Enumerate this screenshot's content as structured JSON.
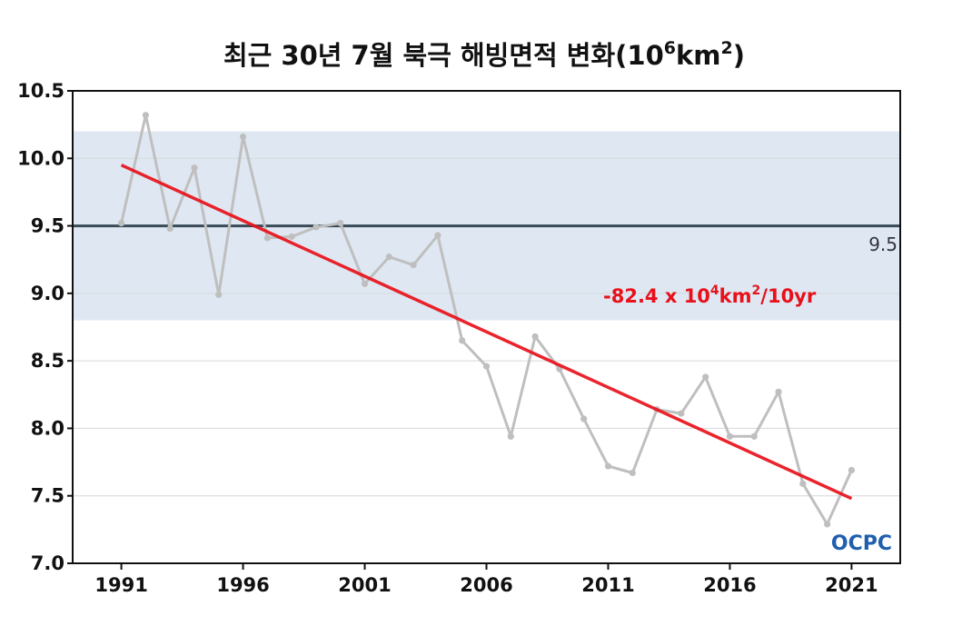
{
  "chart_data": {
    "type": "line",
    "title": "최근 30년 7월 북극 해빙면적 변화(10⁶km²)",
    "title_main": "최근 30년 7월 북극 해빙면적 변화(10",
    "title_exp": "6",
    "title_unit": "km",
    "title_exp2": "2",
    "title_close": ")",
    "xlabel": "",
    "ylabel": "",
    "xlim": [
      1989,
      2023
    ],
    "ylim": [
      7.0,
      10.5
    ],
    "yticks": [
      "7.0",
      "7.5",
      "8.0",
      "8.5",
      "9.0",
      "9.5",
      "10.0",
      "10.5"
    ],
    "xticks": [
      "1991",
      "1996",
      "2001",
      "2006",
      "2011",
      "2016",
      "2021"
    ],
    "series": [
      {
        "color": "#bfbfbf",
        "x": [
          1991,
          1992,
          1993,
          1994,
          1995,
          1996,
          1997,
          1998,
          1999,
          2000,
          2001,
          2002,
          2003,
          2004,
          2005,
          2006,
          2007,
          2008,
          2009,
          2010,
          2011,
          2012,
          2013,
          2014,
          2015,
          2016,
          2017,
          2018,
          2019,
          2020,
          2021
        ],
        "values": [
          9.52,
          10.32,
          9.48,
          9.93,
          8.99,
          10.16,
          9.41,
          9.42,
          9.49,
          9.52,
          9.07,
          9.27,
          9.21,
          9.43,
          8.65,
          8.46,
          7.94,
          8.68,
          8.44,
          8.07,
          7.72,
          7.67,
          8.14,
          8.11,
          8.38,
          7.94,
          7.94,
          8.27,
          7.59,
          7.29,
          7.69
        ]
      }
    ],
    "trend": {
      "x": [
        1991,
        2021
      ],
      "values": [
        9.95,
        7.48
      ],
      "color": "#e8101a"
    },
    "trend_label": "-82.4 x 10⁴km²/10yr",
    "trend_label_parts": [
      "-82.4 x 10",
      "4",
      "km",
      "2",
      "/10yr"
    ],
    "reference_line": {
      "value": 9.5,
      "label": "9.5",
      "color": "#3a4a58"
    },
    "band": {
      "range": [
        8.8,
        10.2
      ],
      "color": "#dfe8f2"
    },
    "grid": true,
    "logo": "OCPC"
  }
}
